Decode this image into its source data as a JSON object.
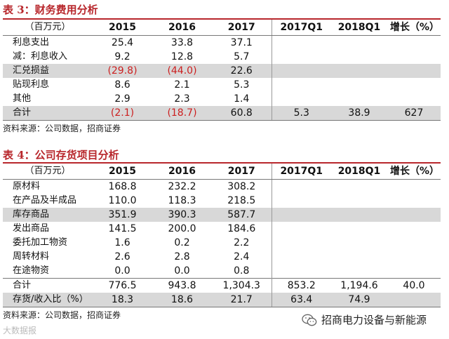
{
  "table3": {
    "title": "表 3：财务费用分析",
    "headers": [
      "（百万元）",
      "2015",
      "2016",
      "2017",
      "2017Q1",
      "2018Q1",
      "增长（%）"
    ],
    "rows": [
      {
        "cells": [
          "利息支出",
          "25.4",
          "33.8",
          "37.1",
          "",
          "",
          ""
        ],
        "shade": false
      },
      {
        "cells": [
          "减：利息收入",
          "9.2",
          "12.8",
          "5.7",
          "",
          "",
          ""
        ],
        "shade": false
      },
      {
        "cells": [
          "汇兑损益",
          "(29.8)",
          "(44.0)",
          "22.6",
          "",
          "",
          ""
        ],
        "shade": true
      },
      {
        "cells": [
          "贴现利息",
          "8.6",
          "2.1",
          "5.3",
          "",
          "",
          ""
        ],
        "shade": false
      },
      {
        "cells": [
          "其他",
          "2.9",
          "2.3",
          "1.4",
          "",
          "",
          ""
        ],
        "shade": false
      },
      {
        "cells": [
          "合计",
          "(2.1)",
          "(18.7)",
          "60.8",
          "5.3",
          "38.9",
          "627"
        ],
        "shade": true
      }
    ],
    "source": "资料来源：公司数据，招商证券"
  },
  "table4": {
    "title": "表 4：公司存货项目分析",
    "headers": [
      "（百万元）",
      "2015",
      "2016",
      "2017",
      "2017Q1",
      "2018Q1",
      "增长（%）"
    ],
    "rows": [
      {
        "cells": [
          "原材料",
          "168.8",
          "232.2",
          "308.2",
          "",
          "",
          ""
        ],
        "shade": false
      },
      {
        "cells": [
          "在产品及半成品",
          "110.0",
          "118.3",
          "218.5",
          "",
          "",
          ""
        ],
        "shade": false
      },
      {
        "cells": [
          "库存商品",
          "351.9",
          "390.3",
          "587.7",
          "",
          "",
          ""
        ],
        "shade": true
      },
      {
        "cells": [
          "发出商品",
          "141.5",
          "200.0",
          "184.6",
          "",
          "",
          ""
        ],
        "shade": false
      },
      {
        "cells": [
          "委托加工物资",
          "1.6",
          "0.2",
          "2.2",
          "",
          "",
          ""
        ],
        "shade": false
      },
      {
        "cells": [
          "周转材料",
          "2.6",
          "2.8",
          "2.4",
          "",
          "",
          ""
        ],
        "shade": false
      },
      {
        "cells": [
          "在途物资",
          "0.0",
          "0.0",
          "0.8",
          "",
          "",
          ""
        ],
        "shade": false
      },
      {
        "cells": [
          "合计",
          "776.5",
          "943.8",
          "1,304.3",
          "853.2",
          "1,194.6",
          "40.0"
        ],
        "shade": false
      },
      {
        "cells": [
          "存货/收入比（%）",
          "18.3",
          "18.6",
          "21.7",
          "63.4",
          "74.9",
          ""
        ],
        "shade": true
      }
    ],
    "source": "资料来源：公司数据，招商证券"
  },
  "watermark": {
    "left_text": "大数据报",
    "right_text": "招商电力设备与新能源",
    "icon": "wechat-icon"
  },
  "colors": {
    "accent": "#b8272c",
    "negative": "#cc1f1f",
    "shade": "#d8d8d8"
  }
}
